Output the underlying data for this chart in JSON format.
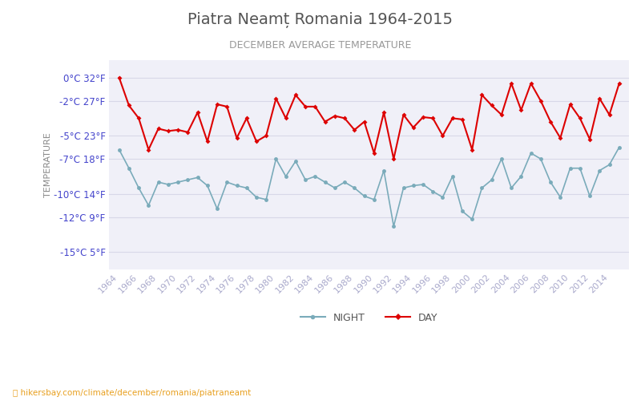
{
  "title": "Piatra Neamt Romania 1964-2015",
  "subtitle": "DECEMBER AVERAGE TEMPERATURE",
  "ylabel": "TEMPERATURE",
  "ylabel_color": "#888888",
  "background_color": "#ffffff",
  "plot_background": "#f0f0f8",
  "grid_color": "#d8d8e8",
  "years": [
    1964,
    1965,
    1966,
    1967,
    1968,
    1969,
    1970,
    1971,
    1972,
    1973,
    1974,
    1975,
    1976,
    1977,
    1978,
    1979,
    1980,
    1981,
    1982,
    1983,
    1984,
    1985,
    1986,
    1987,
    1988,
    1989,
    1990,
    1991,
    1992,
    1993,
    1994,
    1995,
    1996,
    1997,
    1998,
    1999,
    2000,
    2001,
    2002,
    2003,
    2004,
    2005,
    2006,
    2007,
    2008,
    2009,
    2010,
    2011,
    2012,
    2013,
    2014,
    2015
  ],
  "day_temps": [
    0.0,
    -2.4,
    -3.5,
    -6.2,
    -4.4,
    -4.6,
    -4.5,
    -4.7,
    -3.0,
    -5.5,
    -2.3,
    -2.5,
    -5.2,
    -3.5,
    -5.5,
    -5.0,
    -1.8,
    -3.5,
    -1.5,
    -2.5,
    -2.5,
    -3.8,
    -3.3,
    -3.5,
    -4.5,
    -3.8,
    -6.5,
    -3.0,
    -7.0,
    -3.2,
    -4.3,
    -3.4,
    -3.5,
    -5.0,
    -3.5,
    -3.6,
    -6.2,
    -1.5,
    -2.4,
    -3.2,
    -0.5,
    -2.8,
    -0.5,
    -2.0,
    -3.8,
    -5.2,
    -2.3,
    -3.5,
    -5.3,
    -1.8,
    -3.2,
    -0.5
  ],
  "night_temps": [
    -6.2,
    -7.8,
    -9.5,
    -11.0,
    -9.0,
    -9.2,
    -9.0,
    -8.8,
    -8.6,
    -9.3,
    -11.3,
    -9.0,
    -9.3,
    -9.5,
    -10.3,
    -10.5,
    -7.0,
    -8.5,
    -7.2,
    -8.8,
    -8.5,
    -9.0,
    -9.5,
    -9.0,
    -9.5,
    -10.2,
    -10.5,
    -8.0,
    -12.8,
    -9.5,
    -9.3,
    -9.2,
    -9.8,
    -10.3,
    -8.5,
    -11.5,
    -12.2,
    -9.5,
    -8.8,
    -7.0,
    -9.5,
    -8.5,
    -6.5,
    -7.0,
    -9.0,
    -10.3,
    -7.8,
    -7.8,
    -10.2,
    -8.0,
    -7.5,
    -6.0
  ],
  "yticks_celsius": [
    0,
    -2,
    -5,
    -7,
    -10,
    -12,
    -15
  ],
  "yticks_fahrenheit": [
    32,
    27,
    23,
    18,
    14,
    9,
    5
  ],
  "ylim": [
    -16.5,
    1.5
  ],
  "day_color": "#dd0000",
  "night_color": "#7aabba",
  "watermark": "hikersbay.com/climate/december/romania/piatraneamt",
  "watermark_color": "#e8a020",
  "title_color": "#555555",
  "subtitle_color": "#999999",
  "tick_label_color": "#4444cc",
  "xtick_color": "#aaaacc"
}
